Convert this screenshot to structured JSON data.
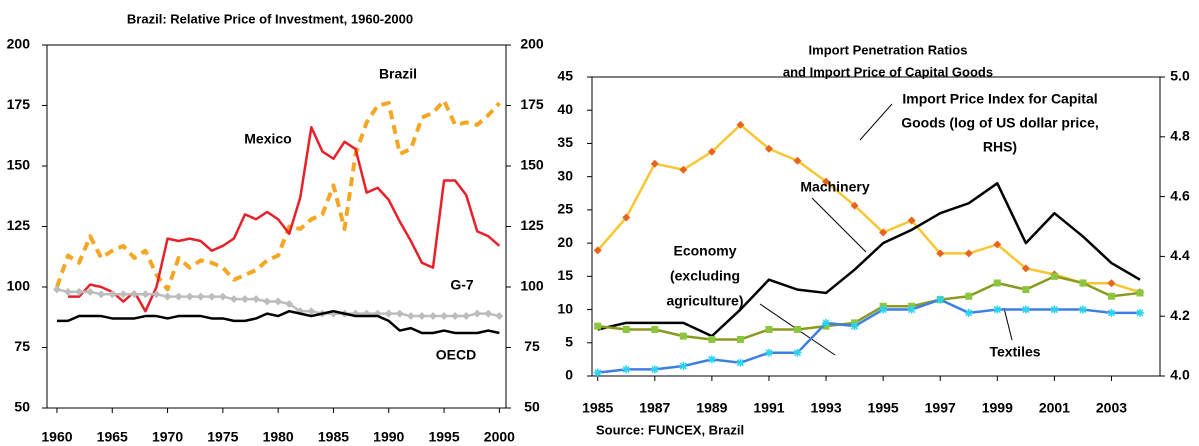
{
  "chart_data": [
    {
      "type": "line",
      "title": [
        "Brazil: Relative Price of Investment, 1960-2000"
      ],
      "x": [
        1960,
        1961,
        1962,
        1963,
        1964,
        1965,
        1966,
        1967,
        1968,
        1969,
        1970,
        1971,
        1972,
        1973,
        1974,
        1975,
        1976,
        1977,
        1978,
        1979,
        1980,
        1981,
        1982,
        1983,
        1984,
        1985,
        1986,
        1987,
        1988,
        1989,
        1990,
        1991,
        1992,
        1993,
        1994,
        1995,
        1996,
        1997,
        1998,
        1999,
        2000
      ],
      "xlim": [
        1959.1,
        2000.6
      ],
      "xticks": [
        1960,
        1965,
        1970,
        1975,
        1980,
        1985,
        1990,
        1995,
        2000
      ],
      "ylim": [
        50,
        200
      ],
      "yticks": [
        50,
        75,
        100,
        125,
        150,
        175,
        200
      ],
      "y2lim": [
        50,
        200
      ],
      "y2ticks": [
        50,
        75,
        100,
        125,
        150,
        175,
        200
      ],
      "series": [
        {
          "name": [
            "Brazil"
          ],
          "color": "#f5a623",
          "dash": true,
          "marker": "none",
          "values": [
            100,
            113,
            110,
            121,
            112,
            115,
            117,
            112,
            115,
            105,
            99,
            112,
            108,
            111,
            110,
            108,
            103,
            105,
            107,
            111,
            113,
            125,
            124,
            128,
            130,
            142,
            124,
            155,
            168,
            175,
            176,
            155,
            157,
            170,
            172,
            177,
            167,
            168,
            167,
            171,
            176
          ]
        },
        {
          "name": [
            "Mexico"
          ],
          "color": "#e8202a",
          "dash": false,
          "marker": "none",
          "values": [
            null,
            96,
            96,
            101,
            100,
            98,
            94,
            98,
            90,
            100,
            120,
            119,
            120,
            119,
            115,
            117,
            120,
            130,
            128,
            131,
            128,
            122,
            137,
            166,
            156,
            153,
            160,
            157,
            139,
            141,
            136,
            127,
            119,
            110,
            108,
            144,
            144,
            138,
            123,
            121,
            117
          ]
        },
        {
          "name": [
            "G-7"
          ],
          "color": "#bdbdbd",
          "dash": false,
          "marker": "diamond",
          "marker_color": "#bdbdbd",
          "values": [
            99,
            98,
            98,
            98,
            97,
            97,
            97,
            97,
            97,
            97,
            96,
            96,
            96,
            96,
            96,
            96,
            95,
            95,
            95,
            94,
            94,
            93,
            90,
            90,
            89,
            89,
            89,
            89,
            89,
            89,
            89,
            89,
            88,
            88,
            88,
            88,
            88,
            88,
            89,
            89,
            88
          ]
        },
        {
          "name": [
            "OECD"
          ],
          "color": "#000000",
          "dash": false,
          "marker": "none",
          "values": [
            86,
            86,
            88,
            88,
            88,
            87,
            87,
            87,
            88,
            88,
            87,
            88,
            88,
            88,
            87,
            87,
            86,
            86,
            87,
            89,
            88,
            90,
            89,
            88,
            89,
            90,
            89,
            88,
            88,
            88,
            86,
            82,
            83,
            81,
            81,
            82,
            81,
            81,
            81,
            82,
            81
          ]
        }
      ]
    },
    {
      "type": "line",
      "title": [
        "Import Penetration Ratios",
        "and Import Price of Capital Goods"
      ],
      "x": [
        1985,
        1986,
        1987,
        1988,
        1989,
        1990,
        1991,
        1992,
        1993,
        1994,
        1995,
        1996,
        1997,
        1998,
        1999,
        2000,
        2001,
        2002,
        2003,
        2004
      ],
      "xlim": [
        1984.8,
        2004.7
      ],
      "xticks": [
        1985,
        1987,
        1989,
        1991,
        1993,
        1995,
        1997,
        1999,
        2001,
        2003
      ],
      "ylim": [
        0,
        45
      ],
      "yticks": [
        0,
        5,
        10,
        15,
        20,
        25,
        30,
        35,
        40,
        45
      ],
      "y2lim": [
        4,
        5
      ],
      "y2ticks": [
        {
          "value": 4,
          "label": "4.0"
        },
        4.2,
        4.4,
        4.6,
        4.8,
        {
          "value": 5,
          "label": "5.0"
        }
      ],
      "series": [
        {
          "name": [
            "Import Price Index for Capital",
            "Goods (log of US dollar price,",
            "RHS)"
          ],
          "color": "#f9c630",
          "axis": "y2",
          "marker": "diamond",
          "marker_color": "#e8641e",
          "values": [
            4.42,
            4.53,
            4.71,
            4.69,
            4.75,
            4.84,
            4.76,
            4.72,
            4.65,
            4.57,
            4.48,
            4.52,
            4.41,
            4.41,
            4.44,
            4.36,
            4.34,
            4.31,
            4.31,
            4.28
          ]
        },
        {
          "name": [
            "Machinery"
          ],
          "color": "#000000",
          "marker": "none",
          "values": [
            7,
            8,
            8,
            8,
            6,
            10,
            14.5,
            13,
            12.5,
            16,
            20,
            22,
            24.5,
            26,
            29,
            20,
            24.5,
            21,
            17,
            14.5
          ]
        },
        {
          "name": [
            "Economy",
            "(excluding",
            "agriculture)"
          ],
          "color": "#8a9a1e",
          "marker": "square",
          "marker_color": "#8cc63f",
          "values": [
            7.5,
            7,
            7,
            6,
            5.5,
            5.5,
            7,
            7,
            7.5,
            8,
            10.5,
            10.5,
            11.5,
            12,
            14,
            13,
            15,
            14,
            12,
            12.5
          ]
        },
        {
          "name": [
            "Textiles"
          ],
          "color": "#3d7fe0",
          "marker": "star",
          "marker_color": "#2ad4f0",
          "values": [
            0.5,
            1,
            1,
            1.5,
            2.5,
            2,
            3.5,
            3.5,
            8,
            7.5,
            10,
            10,
            11.5,
            9.5,
            10,
            10,
            10,
            10,
            9.5,
            9.5
          ]
        }
      ],
      "source": "Source: FUNCEX, Brazil"
    }
  ]
}
